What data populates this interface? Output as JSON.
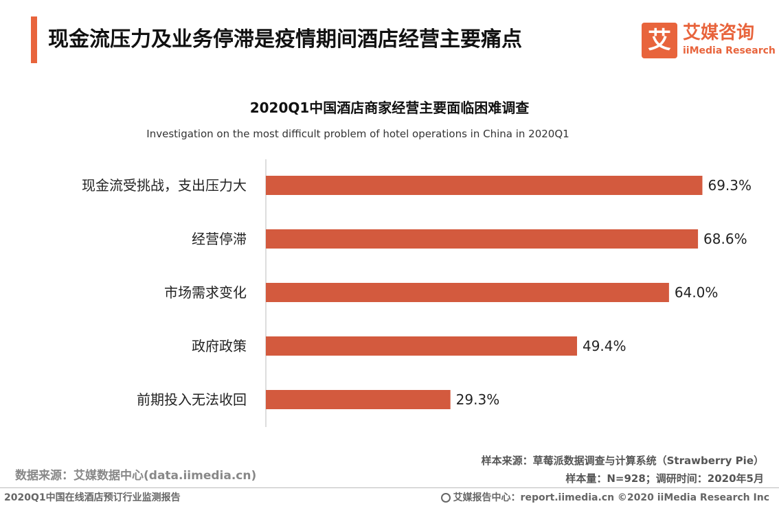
{
  "header": {
    "title": "现金流压力及业务停滞是疫情期间酒店经营主要痛点",
    "logo_mark": "艾",
    "logo_cn": "艾媒咨询",
    "logo_en": "iiMedia Research"
  },
  "colors": {
    "accent": "#e8643c",
    "bar": "#d35a3e"
  },
  "chart_data": {
    "type": "bar",
    "orientation": "horizontal",
    "title": "2020Q1中国酒店商家经营主要面临困难调查",
    "subtitle": "Investigation on the most difficult problem of hotel operations in China in 2020Q1",
    "categories": [
      "现金流受挑战，支出压力大",
      "经营停滞",
      "市场需求变化",
      "政府政策",
      "前期投入无法收回"
    ],
    "values": [
      69.3,
      68.6,
      64.0,
      49.4,
      29.3
    ],
    "value_labels": [
      "69.3%",
      "68.6%",
      "64.0%",
      "49.4%",
      "29.3%"
    ],
    "unit": "%",
    "xlim": [
      0,
      100
    ],
    "grid": false,
    "legend": "none"
  },
  "sources": {
    "data_source": "数据来源：艾媒数据中心(data.iimedia.cn)",
    "sample_source": "样本来源：草莓派数据调查与计算系统（Strawberry Pie）",
    "sample_info": "样本量：N=928；调研时间：2020年5月"
  },
  "footer": {
    "report_name": "2020Q1中国在线酒店预订行业监测报告",
    "center": "艾媒报告中心：report.iimedia.cn  ©2020  iiMedia Research  Inc"
  }
}
